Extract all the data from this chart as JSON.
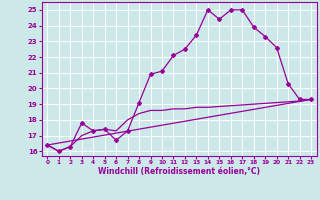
{
  "xlabel": "Windchill (Refroidissement éolien,°C)",
  "bg_color": "#cce8e8",
  "line_color": "#990099",
  "grid_color": "#ffffff",
  "xlim": [
    -0.5,
    23.5
  ],
  "ylim": [
    15.7,
    25.5
  ],
  "yticks": [
    16,
    17,
    18,
    19,
    20,
    21,
    22,
    23,
    24,
    25
  ],
  "xticks": [
    0,
    1,
    2,
    3,
    4,
    5,
    6,
    7,
    8,
    9,
    10,
    11,
    12,
    13,
    14,
    15,
    16,
    17,
    18,
    19,
    20,
    21,
    22,
    23
  ],
  "line1_x": [
    0,
    1,
    2,
    3,
    4,
    5,
    6,
    7,
    8,
    9,
    10,
    11,
    12,
    13,
    14,
    15,
    16,
    17,
    18,
    19,
    20,
    21,
    22,
    23
  ],
  "line1_y": [
    16.4,
    16.0,
    16.3,
    17.8,
    17.3,
    17.4,
    16.7,
    17.3,
    19.1,
    20.9,
    21.1,
    22.1,
    22.5,
    23.4,
    25.0,
    24.4,
    25.0,
    25.0,
    23.9,
    23.3,
    22.6,
    20.3,
    19.3,
    19.3
  ],
  "line2_x": [
    0,
    1,
    2,
    3,
    4,
    5,
    6,
    7,
    8,
    9,
    10,
    11,
    12,
    13,
    14,
    15,
    16,
    17,
    18,
    19,
    20,
    21,
    22,
    23
  ],
  "line2_y": [
    16.4,
    16.0,
    16.3,
    17.0,
    17.3,
    17.4,
    17.3,
    18.0,
    18.4,
    18.6,
    18.6,
    18.7,
    18.7,
    18.8,
    18.8,
    18.85,
    18.9,
    18.95,
    19.0,
    19.05,
    19.1,
    19.15,
    19.2,
    19.3
  ],
  "line3_x": [
    0,
    23
  ],
  "line3_y": [
    16.4,
    19.3
  ]
}
